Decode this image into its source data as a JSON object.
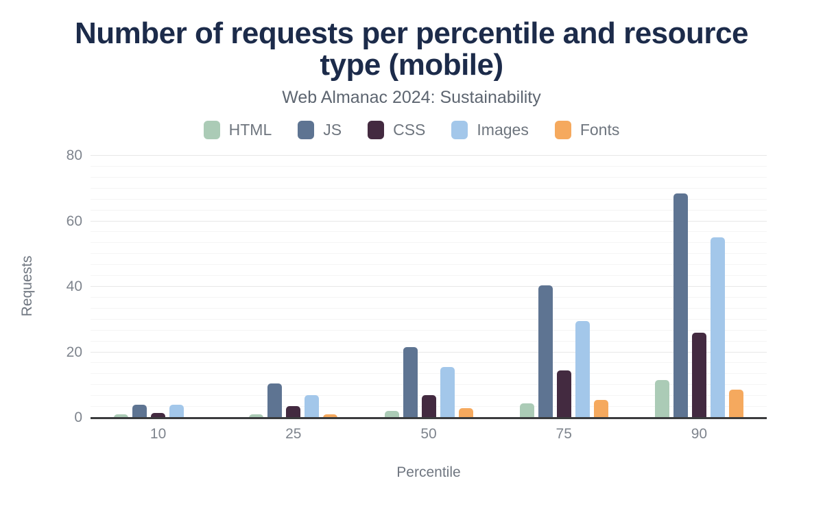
{
  "title": "Number of requests per percentile and resource type (mobile)",
  "subtitle": "Web Almanac 2024: Sustainability",
  "chart_data": {
    "type": "bar",
    "title": "Number of requests per percentile and resource type (mobile)",
    "subtitle": "Web Almanac 2024: Sustainability",
    "categories": [
      "10",
      "25",
      "50",
      "75",
      "90"
    ],
    "series": [
      {
        "name": "HTML",
        "color": "#abcbb6",
        "values": [
          1,
          1,
          2,
          4.5,
          11.5
        ]
      },
      {
        "name": "JS",
        "color": "#5e7492",
        "values": [
          4,
          10.5,
          21.5,
          40.5,
          68.5
        ]
      },
      {
        "name": "CSS",
        "color": "#432a40",
        "values": [
          1.5,
          3.5,
          7,
          14.5,
          26
        ]
      },
      {
        "name": "Images",
        "color": "#a3c7ea",
        "values": [
          4,
          7,
          15.5,
          29.5,
          55
        ]
      },
      {
        "name": "Fonts",
        "color": "#f5a95e",
        "values": [
          0,
          1,
          3,
          5.5,
          8.5
        ]
      }
    ],
    "xlabel": "Percentile",
    "ylabel": "Requests",
    "ylim": [
      0,
      80
    ],
    "yticks": [
      0,
      20,
      40,
      60,
      80
    ],
    "grid": "horizontal major gridlines every 20 with 5 light minor gridlines between",
    "legend_position": "top"
  },
  "colors": {
    "background": "#ffffff",
    "title_text": "#1c2b4a",
    "subtitle_text": "#5d6570",
    "legend_text": "#6e757e",
    "axis_tick_text": "#7e848d",
    "axis_title_text": "#6f7680",
    "axis_line": "#3a3b3d",
    "major_gridline": "#e7e7e7",
    "minor_gridline": "#f4f4f4"
  }
}
